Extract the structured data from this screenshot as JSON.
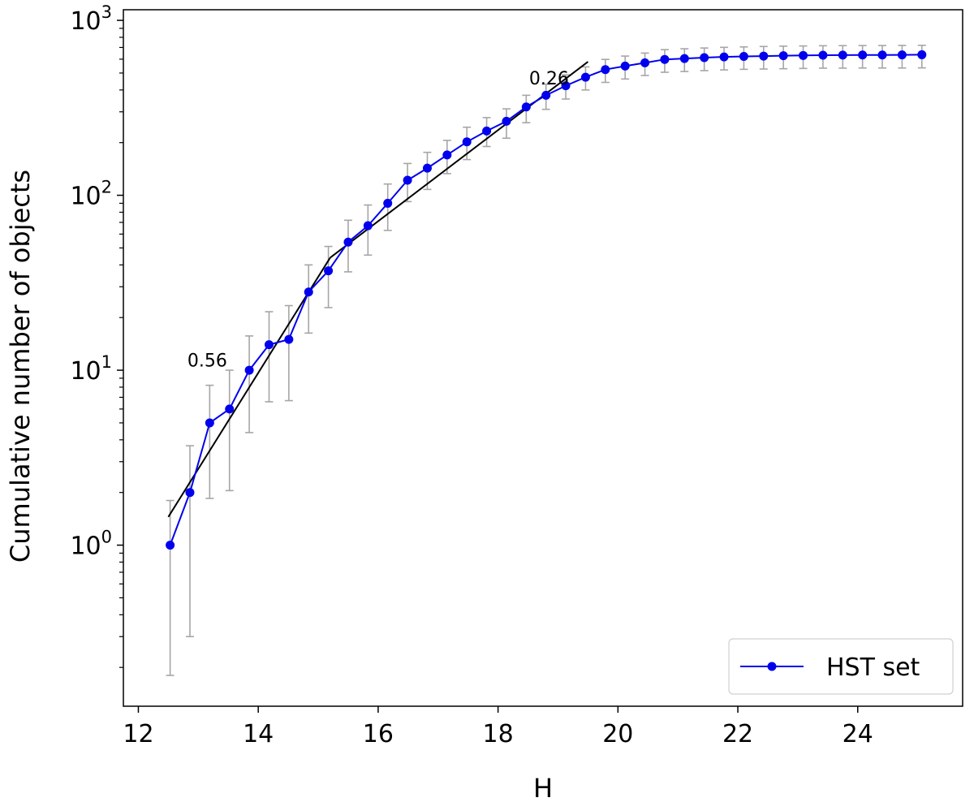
{
  "chart_data": {
    "type": "line",
    "xlabel": "H",
    "ylabel": "Cumulative number of objects",
    "xlim": [
      11.75,
      25.75
    ],
    "ylim": [
      0.12,
      1150
    ],
    "yscale": "log",
    "grid": false,
    "legend_position": "bottom-right",
    "x_ticks": [
      12,
      14,
      16,
      18,
      20,
      22,
      24
    ],
    "x_tick_labels": [
      "12",
      "14",
      "16",
      "18",
      "20",
      "22",
      "24"
    ],
    "y_ticks": [
      1,
      10,
      100,
      1000
    ],
    "y_tick_labels": [
      {
        "base": "10",
        "exp": "0"
      },
      {
        "base": "10",
        "exp": "1"
      },
      {
        "base": "10",
        "exp": "2"
      },
      {
        "base": "10",
        "exp": "3"
      }
    ],
    "series": [
      {
        "name": "HST set",
        "color": "#0000ee",
        "x": [
          12.53,
          12.86,
          13.19,
          13.52,
          13.85,
          14.18,
          14.51,
          14.84,
          15.17,
          15.5,
          15.83,
          16.16,
          16.49,
          16.82,
          17.15,
          17.48,
          17.81,
          18.14,
          18.47,
          18.8,
          19.13,
          19.46,
          19.79,
          20.12,
          20.45,
          20.78,
          21.11,
          21.44,
          21.77,
          22.1,
          22.43,
          22.76,
          23.09,
          23.42,
          23.75,
          24.08,
          24.41,
          24.74,
          25.07
        ],
        "y": [
          1,
          2,
          5,
          6,
          10,
          14,
          15,
          28,
          37,
          54,
          67,
          90,
          122,
          143,
          170,
          202,
          233,
          265,
          320,
          373,
          423,
          473,
          523,
          548,
          572,
          598,
          605,
          612,
          618,
          622,
          625,
          628,
          630,
          632,
          633,
          634,
          634,
          635,
          636
        ],
        "y_err_low": [
          0.18,
          0.3,
          1.85,
          2.05,
          4.4,
          6.6,
          6.7,
          16.3,
          22.8,
          36.5,
          45.5,
          63,
          92,
          108,
          133,
          160,
          190,
          212,
          260,
          310,
          355,
          400,
          442,
          462,
          484,
          505,
          510,
          516,
          521,
          525,
          527,
          529,
          531,
          533,
          533,
          534,
          534,
          534,
          535
        ],
        "y_err_high": [
          1.8,
          3.7,
          8.2,
          10,
          15.7,
          21.6,
          23.4,
          40,
          51,
          72,
          88,
          116,
          152,
          176,
          206,
          245,
          278,
          312,
          373,
          432,
          488,
          542,
          598,
          625,
          650,
          680,
          688,
          695,
          701,
          705,
          709,
          712,
          714,
          716,
          717,
          718,
          718,
          719,
          720
        ]
      }
    ],
    "fit_lines": [
      {
        "label": "0.56",
        "x": [
          12.5,
          15.2
        ],
        "y": [
          1.45,
          44
        ]
      },
      {
        "label": "0.26",
        "x": [
          15.2,
          19.5
        ],
        "y": [
          44,
          580
        ]
      }
    ],
    "colors": {
      "errorbar": "#a6a6a6",
      "fit": "#000000",
      "series": "#0000ee"
    }
  }
}
